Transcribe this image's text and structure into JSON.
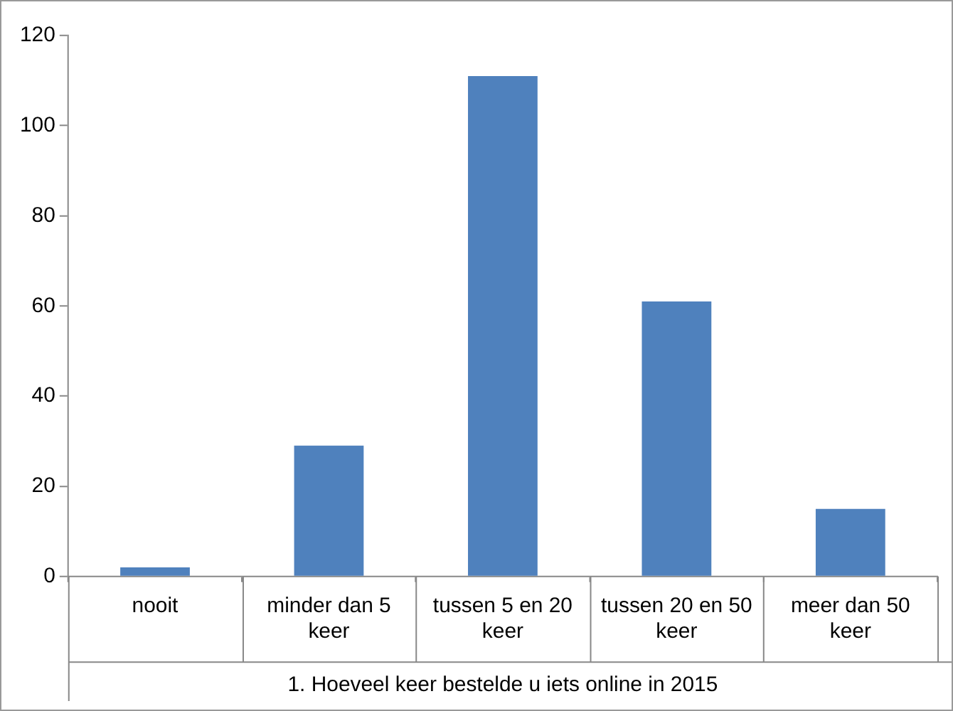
{
  "chart_data": {
    "type": "bar",
    "xlabel": "1. Hoeveel keer bestelde u iets online in 2015",
    "categories": [
      "nooit",
      "minder dan 5 keer",
      "tussen 5 en 20 keer",
      "tussen 20 en 50 keer",
      "meer dan 50 keer"
    ],
    "values": [
      2,
      29,
      111,
      61,
      15
    ],
    "color": "#4f81bd",
    "ylim": [
      0,
      120
    ],
    "yticks": [
      0,
      20,
      40,
      60,
      80,
      100,
      120
    ],
    "grid": false,
    "legend": false
  }
}
